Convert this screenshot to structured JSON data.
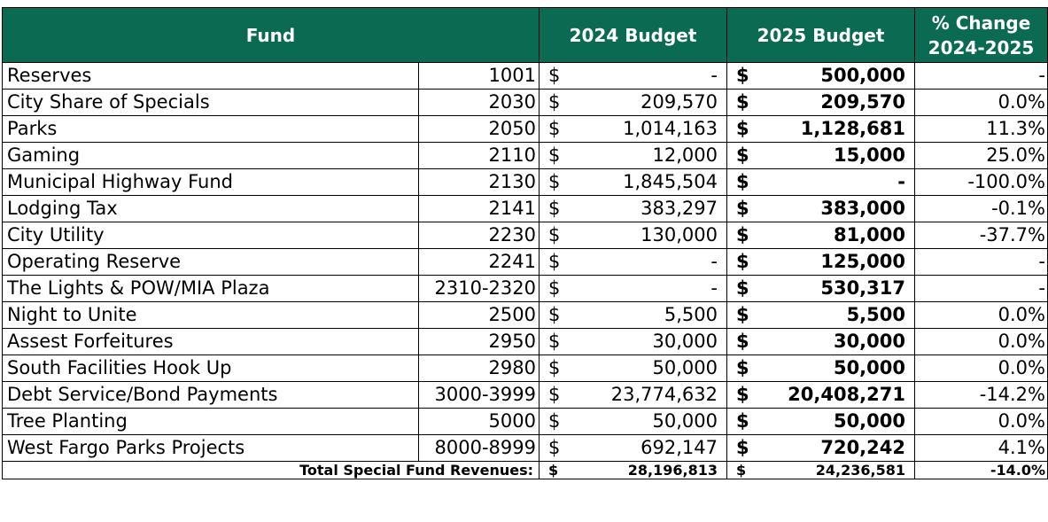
{
  "header": {
    "fund": "Fund",
    "budget_2024": "2024 Budget",
    "budget_2025": "2025 Budget",
    "pct_change_line1": "% Change",
    "pct_change_line2": "2024-2025"
  },
  "colors": {
    "header_bg": "#0b6b52",
    "header_text": "#ffffff"
  },
  "rows": [
    {
      "name": "Reserves",
      "code": "1001",
      "cur1": "$",
      "b2024": "-",
      "cur2": "$",
      "b2025": "500,000",
      "pct": "-"
    },
    {
      "name": "City Share of Specials",
      "code": "2030",
      "cur1": "$",
      "b2024": "209,570",
      "cur2": "$",
      "b2025": "209,570",
      "pct": "0.0%"
    },
    {
      "name": "Parks",
      "code": "2050",
      "cur1": "$",
      "b2024": "1,014,163",
      "cur2": "$",
      "b2025": "1,128,681",
      "pct": "11.3%"
    },
    {
      "name": "Gaming",
      "code": "2110",
      "cur1": "$",
      "b2024": "12,000",
      "cur2": "$",
      "b2025": "15,000",
      "pct": "25.0%"
    },
    {
      "name": "Municipal Highway Fund",
      "code": "2130",
      "cur1": "$",
      "b2024": "1,845,504",
      "cur2": "$",
      "b2025": "-",
      "pct": "-100.0%"
    },
    {
      "name": "Lodging Tax",
      "code": "2141",
      "cur1": "$",
      "b2024": "383,297",
      "cur2": "$",
      "b2025": "383,000",
      "pct": "-0.1%"
    },
    {
      "name": "City Utility",
      "code": "2230",
      "cur1": "$",
      "b2024": "130,000",
      "cur2": "$",
      "b2025": "81,000",
      "pct": "-37.7%"
    },
    {
      "name": "Operating Reserve",
      "code": "2241",
      "cur1": "$",
      "b2024": "-",
      "cur2": "$",
      "b2025": "125,000",
      "pct": "-"
    },
    {
      "name": "The Lights & POW/MIA Plaza",
      "code": "2310-2320",
      "cur1": "$",
      "b2024": "-",
      "cur2": "$",
      "b2025": "530,317",
      "pct": "-"
    },
    {
      "name": "Night to Unite",
      "code": "2500",
      "cur1": "$",
      "b2024": "5,500",
      "cur2": "$",
      "b2025": "5,500",
      "pct": "0.0%"
    },
    {
      "name": "Assest Forfeitures",
      "code": "2950",
      "cur1": "$",
      "b2024": "30,000",
      "cur2": "$",
      "b2025": "30,000",
      "pct": "0.0%"
    },
    {
      "name": "South Facilities Hook Up",
      "code": "2980",
      "cur1": "$",
      "b2024": "50,000",
      "cur2": "$",
      "b2025": "50,000",
      "pct": "0.0%"
    },
    {
      "name": "Debt Service/Bond Payments",
      "code": "3000-3999",
      "cur1": "$",
      "b2024": "23,774,632",
      "cur2": "$",
      "b2025": "20,408,271",
      "pct": "-14.2%"
    },
    {
      "name": "Tree Planting",
      "code": "5000",
      "cur1": "$",
      "b2024": "50,000",
      "cur2": "$",
      "b2025": "50,000",
      "pct": "0.0%"
    },
    {
      "name": "West Fargo Parks Projects",
      "code": "8000-8999",
      "cur1": "$",
      "b2024": "692,147",
      "cur2": "$",
      "b2025": "720,242",
      "pct": "4.1%"
    }
  ],
  "total": {
    "label": "Total Special Fund Revenues:",
    "cur1": "$",
    "b2024": "28,196,813",
    "cur2": "$",
    "b2025": "24,236,581",
    "pct": "-14.0%"
  }
}
